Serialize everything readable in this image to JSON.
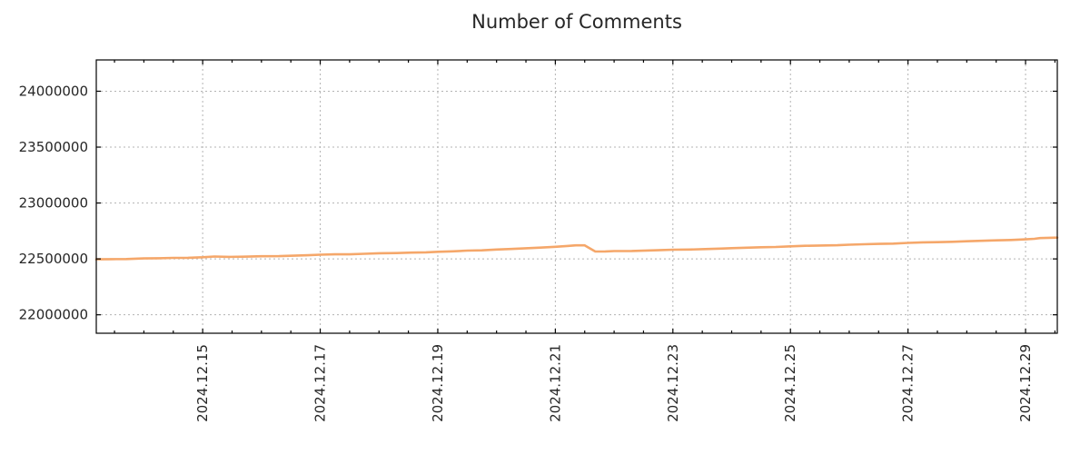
{
  "chart_data": {
    "type": "line",
    "title": "Number of Comments",
    "xlabel": "",
    "ylabel": "",
    "legend": "none",
    "grid": true,
    "colors": {
      "line": "#f5a76a",
      "grid": "#b3b3b3",
      "text": "#262626",
      "border": "#000000",
      "background": "#ffffff"
    },
    "x_axis": {
      "unit": "day of December 2024",
      "lim": [
        13.19,
        29.54
      ],
      "minor_tick_interval_days": 0.5,
      "major_ticks": [
        {
          "day": 15,
          "label": "2024.12.15"
        },
        {
          "day": 17,
          "label": "2024.12.17"
        },
        {
          "day": 19,
          "label": "2024.12.19"
        },
        {
          "day": 21,
          "label": "2024.12.21"
        },
        {
          "day": 23,
          "label": "2024.12.23"
        },
        {
          "day": 25,
          "label": "2024.12.25"
        },
        {
          "day": 27,
          "label": "2024.12.27"
        },
        {
          "day": 29,
          "label": "2024.12.29"
        }
      ]
    },
    "y_axis": {
      "lim": [
        21835000,
        24280000
      ],
      "ticks": [
        {
          "value": 22000000,
          "label": "22000000"
        },
        {
          "value": 22500000,
          "label": "22500000"
        },
        {
          "value": 23000000,
          "label": "23000000"
        },
        {
          "value": 23500000,
          "label": "23500000"
        },
        {
          "value": 24000000,
          "label": "24000000"
        }
      ]
    },
    "series": [
      {
        "name": "Number of Comments",
        "color": "#f5a76a",
        "points": [
          [
            13.19,
            22496000
          ],
          [
            13.45,
            22498000
          ],
          [
            13.7,
            22499000
          ],
          [
            14.0,
            22504000
          ],
          [
            14.25,
            22506000
          ],
          [
            14.5,
            22509000
          ],
          [
            14.75,
            22510000
          ],
          [
            15.0,
            22515000
          ],
          [
            15.2,
            22521000
          ],
          [
            15.45,
            22518000
          ],
          [
            15.7,
            22520000
          ],
          [
            16.0,
            22524000
          ],
          [
            16.3,
            22525000
          ],
          [
            16.55,
            22529000
          ],
          [
            16.8,
            22533000
          ],
          [
            17.0,
            22538000
          ],
          [
            17.25,
            22541000
          ],
          [
            17.5,
            22541000
          ],
          [
            17.75,
            22546000
          ],
          [
            18.0,
            22551000
          ],
          [
            18.3,
            22552000
          ],
          [
            18.55,
            22556000
          ],
          [
            18.8,
            22559000
          ],
          [
            19.0,
            22564000
          ],
          [
            19.25,
            22568000
          ],
          [
            19.5,
            22574000
          ],
          [
            19.75,
            22577000
          ],
          [
            20.0,
            22584000
          ],
          [
            20.25,
            22589000
          ],
          [
            20.5,
            22595000
          ],
          [
            20.75,
            22601000
          ],
          [
            21.0,
            22608000
          ],
          [
            21.2,
            22616000
          ],
          [
            21.35,
            22621000
          ],
          [
            21.5,
            22621000
          ],
          [
            21.68,
            22566000
          ],
          [
            21.85,
            22567000
          ],
          [
            22.0,
            22570000
          ],
          [
            22.3,
            22571000
          ],
          [
            22.55,
            22575000
          ],
          [
            22.8,
            22579000
          ],
          [
            23.0,
            22582000
          ],
          [
            23.3,
            22584000
          ],
          [
            23.55,
            22588000
          ],
          [
            23.8,
            22592000
          ],
          [
            24.0,
            22596000
          ],
          [
            24.25,
            22600000
          ],
          [
            24.5,
            22604000
          ],
          [
            24.75,
            22607000
          ],
          [
            25.0,
            22612000
          ],
          [
            25.25,
            22617000
          ],
          [
            25.5,
            22620000
          ],
          [
            25.8,
            22622000
          ],
          [
            26.0,
            22627000
          ],
          [
            26.25,
            22631000
          ],
          [
            26.5,
            22634000
          ],
          [
            26.75,
            22637000
          ],
          [
            27.0,
            22643000
          ],
          [
            27.25,
            22648000
          ],
          [
            27.5,
            22650000
          ],
          [
            27.75,
            22653000
          ],
          [
            28.0,
            22658000
          ],
          [
            28.25,
            22662000
          ],
          [
            28.5,
            22666000
          ],
          [
            28.75,
            22669000
          ],
          [
            29.0,
            22675000
          ],
          [
            29.15,
            22680000
          ],
          [
            29.25,
            22686000
          ],
          [
            29.54,
            22690000
          ]
        ]
      }
    ]
  }
}
